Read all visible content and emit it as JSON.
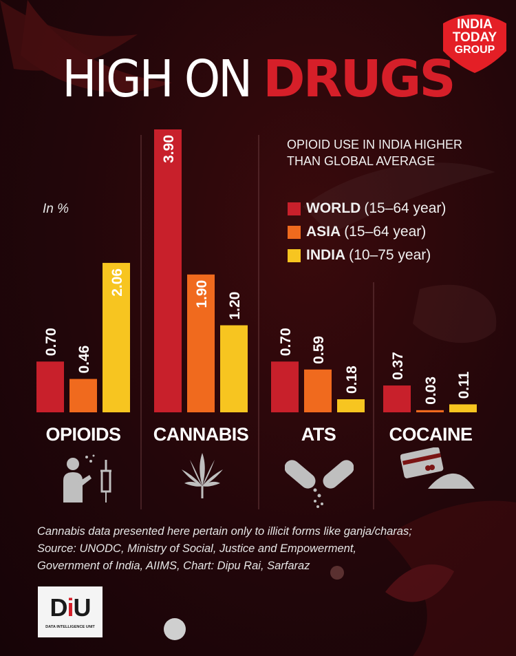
{
  "brand": {
    "logo_line1": "INDIA",
    "logo_line2": "TODAY",
    "logo_line3": "GROUP",
    "logo_color": "#e41f26"
  },
  "headline": {
    "part1": "HIGH ON ",
    "part2": "DRUGS"
  },
  "subtitle": {
    "line1": "OPIOID USE IN INDIA HIGHER",
    "line2": "THAN GLOBAL AVERAGE"
  },
  "unit_label": "In %",
  "legend": [
    {
      "name": "WORLD",
      "detail": "(15–64 year)",
      "color": "#c8202b"
    },
    {
      "name": "ASIA",
      "detail": "(15–64 year)",
      "color": "#f06a1e"
    },
    {
      "name": "INDIA",
      "detail": "(10–75 year)",
      "color": "#f7c520"
    }
  ],
  "chart_data": {
    "type": "bar",
    "categories": [
      "OPIOIDS",
      "CANNABIS",
      "ATS",
      "COCAINE"
    ],
    "series": [
      {
        "name": "WORLD (15–64 year)",
        "values": [
          0.7,
          3.9,
          0.7,
          0.37
        ],
        "color": "#c8202b"
      },
      {
        "name": "ASIA (15–64 year)",
        "values": [
          0.46,
          1.9,
          0.59,
          0.03
        ],
        "color": "#f06a1e"
      },
      {
        "name": "INDIA (10–75 year)",
        "values": [
          2.06,
          1.2,
          0.18,
          0.11
        ],
        "color": "#f7c520"
      }
    ],
    "value_labels": [
      [
        "0.70",
        "0.46",
        "2.06"
      ],
      [
        "3.90",
        "1.90",
        "1.20"
      ],
      [
        "0.70",
        "0.59",
        "0.18"
      ],
      [
        "0.37",
        "0.03",
        "0.11"
      ]
    ],
    "ylabel": "In %",
    "ylim": [
      0,
      3.9
    ],
    "grid": false,
    "legend_position": "top-right"
  },
  "category_icons": [
    "person-injecting-icon",
    "cannabis-leaf-icon",
    "pill-capsules-icon",
    "card-and-powder-icon"
  ],
  "footnote": {
    "line1": "Cannabis data presented here pertain only to illicit forms like ganja/charas;",
    "line2": "Source: UNODC, Ministry of Social, Justice and Empowerment,",
    "line3": "Government of India, AIIMS, Chart: Dipu Rai, Sarfaraz"
  },
  "diu": {
    "word_d": "D",
    "word_i": "i",
    "word_u": "U",
    "caption": "DATA INTELLIGENCE UNIT"
  }
}
